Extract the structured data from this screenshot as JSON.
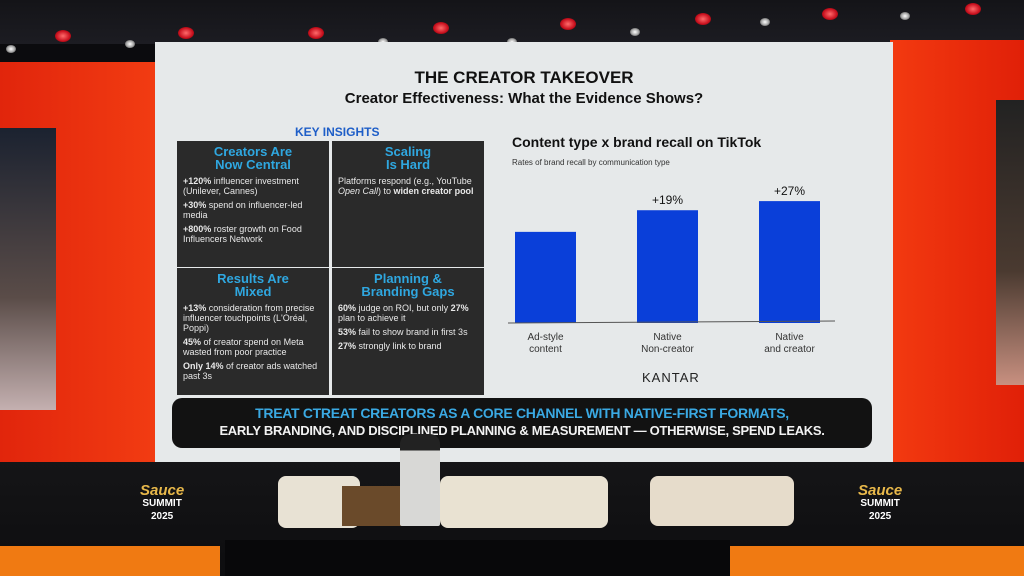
{
  "slide": {
    "title": "THE CREATOR TAKEOVER",
    "subtitle": "Creator Effectiveness: What the Evidence Shows?",
    "key_insights_label": "KEY INSIGHTS",
    "boxes": [
      {
        "heading_1": "Creators Are",
        "heading_2": "Now Central",
        "items": [
          {
            "bold": "+120%",
            "text": " influencer investment (Unilever, Cannes)"
          },
          {
            "bold": "+30%",
            "text": " spend on influencer-led media"
          },
          {
            "bold": "+800%",
            "text": " roster growth on Food Influencers Network"
          }
        ]
      },
      {
        "heading_1": "Scaling",
        "heading_2": "Is Hard",
        "items": [
          {
            "text": "Platforms respond (e.g., YouTube ",
            "italic": "Open Call",
            "text2": ") to ",
            "bold": "widen creator pool"
          }
        ]
      },
      {
        "heading_1": "Results Are",
        "heading_2": "Mixed",
        "items": [
          {
            "bold": "+13%",
            "text": " consideration from precise influencer touchpoints (L'Oréal, Poppi)"
          },
          {
            "bold": "45%",
            "text": " of creator spend on Meta wasted from poor practice"
          },
          {
            "bold": "Only 14%",
            "text": " of creator ads watched past 3s"
          }
        ]
      },
      {
        "heading_1": "Planning &",
        "heading_2": "Branding Gaps",
        "items": [
          {
            "bold": "60%",
            "text": " judge on ROI, but only "
          },
          {
            "bold": "53%",
            "text": " fail to show brand in first 3s"
          },
          {
            "bold": "27%",
            "text": " strongly link to brand"
          }
        ],
        "extra_bold": "27%",
        "extra_text": " plan to achieve it"
      }
    ],
    "banner_line1": "TREAT CTREAT CREATORS AS A CORE CHANNEL WITH NATIVE-FIRST FORMATS,",
    "banner_line2": "EARLY BRANDING, AND DISCIPLINED PLANNING & MEASUREMENT — OTHERWISE, SPEND LEAKS.",
    "source_logo": "KANTAR"
  },
  "chart_data": {
    "type": "bar",
    "title": "Content type x brand recall on TikTok",
    "subtitle": "Rates of brand recall by communication type",
    "categories": [
      [
        "Ad-style",
        "content"
      ],
      [
        "Native",
        "Non-creator"
      ],
      [
        "Native",
        "and creator"
      ]
    ],
    "values": [
      100,
      119,
      127
    ],
    "data_labels": [
      "",
      "+19%",
      "+27%"
    ],
    "bar_color": "#0a3fd9",
    "grid": false,
    "ylim": [
      20,
      135
    ]
  },
  "stage": {
    "logo_line1": "Sauce",
    "logo_line2": "SUMMIT",
    "logo_line3": "2025"
  },
  "colors": {
    "accent_blue": "#2fa7e0",
    "panel_red": "#e8300e",
    "stage_orange": "#f07a12"
  }
}
